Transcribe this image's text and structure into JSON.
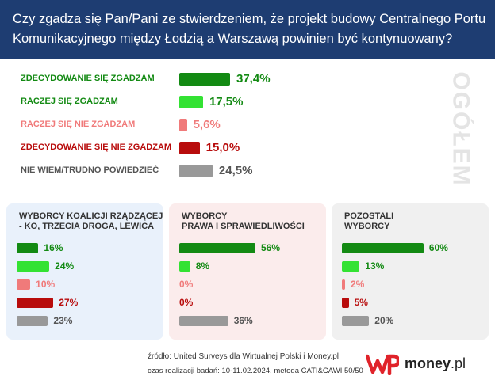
{
  "header": {
    "line1": "Czy zgadza się Pan/Pani ze stwierdzeniem, że projekt budowy Centralnego Portu",
    "line2": "Komunikacyjnego między Łodzią a Warszawą powinien być kontynuowany?"
  },
  "ogolem_label": "OGÓŁEM",
  "colors": {
    "header_bg": "#1e3d72",
    "dark_green": "#138a13",
    "light_green": "#33e233",
    "light_red": "#f07a7a",
    "dark_red": "#b80c0c",
    "gray": "#999999",
    "panel_blue": "#e9f1fb",
    "panel_pink": "#fbecec",
    "panel_gray": "#f0f0f0",
    "brand_red": "#e0232a"
  },
  "chart_data": [
    {
      "type": "bar",
      "title": "OGÓŁEM",
      "categories": [
        "ZDECYDOWANIE SIĘ ZGADZAM",
        "RACZEJ SIĘ ZGADZAM",
        "RACZEJ SIĘ NIE ZGADZAM",
        "ZDECYDOWANIE SIĘ NIE ZGADZAM",
        "NIE WIEM/TRUDNO POWIEDZIEĆ"
      ],
      "values": [
        37.4,
        17.5,
        5.6,
        15.0,
        24.5
      ],
      "value_labels": [
        "37,4%",
        "17,5%",
        "5,6%",
        "15,0%",
        "24,5%"
      ],
      "unit": "%"
    },
    {
      "type": "bar",
      "title_lines": [
        "WYBORCY KOALICJI RZĄDZĄCEJ",
        "- KO, TRZECIA DROGA, LEWICA"
      ],
      "categories": [
        "ZDECYDOWANIE SIĘ ZGADZAM",
        "RACZEJ SIĘ ZGADZAM",
        "RACZEJ SIĘ NIE ZGADZAM",
        "ZDECYDOWANIE SIĘ NIE ZGADZAM",
        "NIE WIEM/TRUDNO POWIEDZIEĆ"
      ],
      "values": [
        16,
        24,
        10,
        27,
        23
      ],
      "value_labels": [
        "16%",
        "24%",
        "10%",
        "27%",
        "23%"
      ],
      "unit": "%"
    },
    {
      "type": "bar",
      "title_lines": [
        "WYBORCY",
        "PRAWA I SPRAWIEDLIWOŚCI"
      ],
      "categories": [
        "ZDECYDOWANIE SIĘ ZGADZAM",
        "RACZEJ SIĘ ZGADZAM",
        "RACZEJ SIĘ NIE ZGADZAM",
        "ZDECYDOWANIE SIĘ NIE ZGADZAM",
        "NIE WIEM/TRUDNO POWIEDZIEĆ"
      ],
      "values": [
        56,
        8,
        0,
        0,
        36
      ],
      "value_labels": [
        "56%",
        "8%",
        "0%",
        "0%",
        "36%"
      ],
      "unit": "%"
    },
    {
      "type": "bar",
      "title_lines": [
        "POZOSTALI",
        "WYBORCY"
      ],
      "categories": [
        "ZDECYDOWANIE SIĘ ZGADZAM",
        "RACZEJ SIĘ ZGADZAM",
        "RACZEJ SIĘ NIE ZGADZAM",
        "ZDECYDOWANIE SIĘ NIE ZGADZAM",
        "NIE WIEM/TRUDNO POWIEDZIEĆ"
      ],
      "values": [
        60,
        13,
        2,
        5,
        20
      ],
      "value_labels": [
        "60%",
        "13%",
        "2%",
        "5%",
        "20%"
      ],
      "unit": "%"
    }
  ],
  "footer": {
    "source": "źródło: United Surveys dla Wirtualnej Polski i Money.pl",
    "time": "czas realizacji badań: 10-11.02.2024, metoda CATI&CAWI 50/50"
  },
  "logo": {
    "money_main": "money",
    "money_suffix": ".pl"
  }
}
